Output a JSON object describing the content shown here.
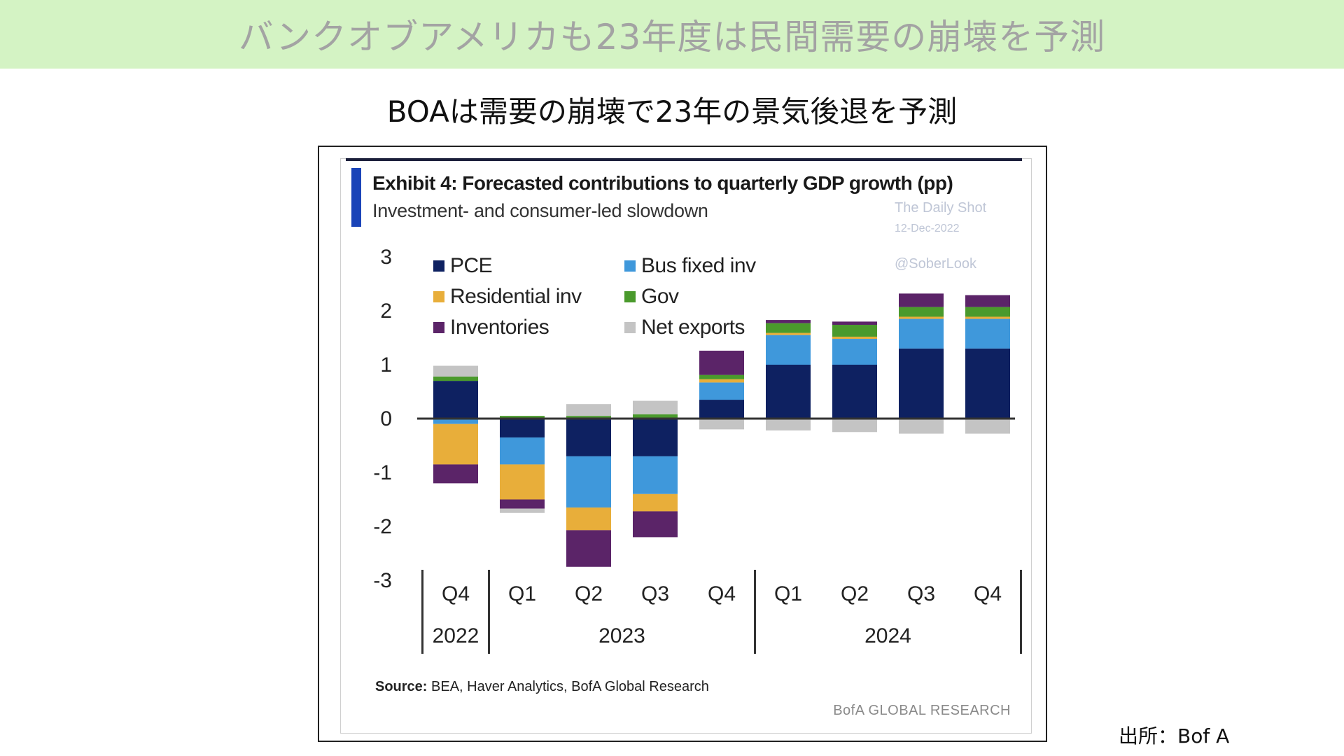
{
  "banner_title": "バンクオブアメリカも23年度は民間需要の崩壊を予測",
  "subtitle": "BOAは需要の崩壊で23年の景気後退を予測",
  "exhibit": {
    "title": "Exhibit 4: Forecasted contributions to quarterly GDP growth (pp)",
    "subtitle": "Investment- and consumer-led slowdown",
    "source_label": "Source:",
    "source_text": " BEA, Haver Analytics, BofA Global Research",
    "brand": "BofA GLOBAL RESEARCH"
  },
  "watermark": {
    "line1": "The Daily Shot",
    "line2": "12-Dec-2022",
    "line3": "@SoberLook"
  },
  "credit": "出所：Bof A",
  "chart_data": {
    "type": "bar",
    "stacked": true,
    "categories": [
      "Q4",
      "Q1",
      "Q2",
      "Q3",
      "Q4",
      "Q1",
      "Q2",
      "Q3",
      "Q4"
    ],
    "year_groups": [
      {
        "label": "2022",
        "count": 1
      },
      {
        "label": "2023",
        "count": 4
      },
      {
        "label": "2024",
        "count": 4
      }
    ],
    "ylim": [
      -3,
      3
    ],
    "yticks": [
      3,
      2,
      1,
      0,
      -1,
      -2,
      -3
    ],
    "legend_position": "top-left",
    "series": [
      {
        "name": "PCE",
        "color": "#0e2161",
        "values": [
          0.7,
          -0.35,
          -0.7,
          -0.7,
          0.35,
          1.0,
          1.0,
          1.3,
          1.3
        ]
      },
      {
        "name": "Bus fixed inv",
        "color": "#3f98db",
        "values": [
          -0.1,
          -0.5,
          -0.95,
          -0.7,
          0.32,
          0.55,
          0.48,
          0.55,
          0.55
        ]
      },
      {
        "name": "Residential inv",
        "color": "#e8ae3a",
        "values": [
          -0.75,
          -0.65,
          -0.42,
          -0.32,
          0.06,
          0.04,
          0.04,
          0.04,
          0.04
        ]
      },
      {
        "name": "Gov",
        "color": "#4a9a2c",
        "values": [
          0.08,
          0.05,
          0.05,
          0.08,
          0.08,
          0.18,
          0.22,
          0.18,
          0.18
        ]
      },
      {
        "name": "Inventories",
        "color": "#5b2468",
        "values": [
          -0.35,
          -0.17,
          -0.68,
          -0.48,
          0.45,
          0.06,
          0.06,
          0.25,
          0.22
        ]
      },
      {
        "name": "Net exports",
        "color": "#c4c4c4",
        "values": [
          0.2,
          -0.08,
          0.22,
          0.25,
          -0.2,
          -0.22,
          -0.25,
          -0.28,
          -0.28
        ]
      }
    ]
  }
}
